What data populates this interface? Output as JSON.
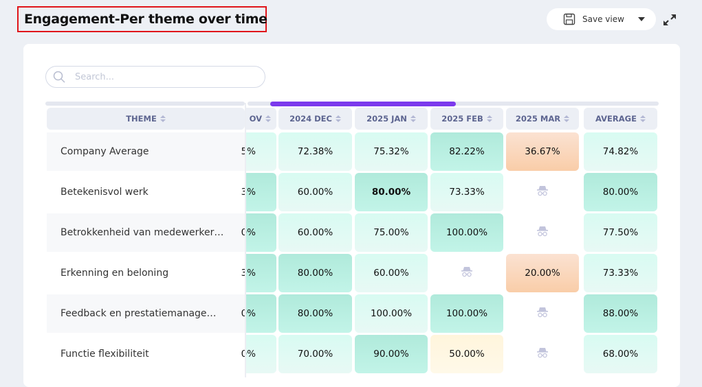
{
  "header": {
    "title": "Engagement-Per theme over time",
    "save_label": "Save view"
  },
  "search": {
    "placeholder": "Search..."
  },
  "table": {
    "columns": [
      "THEME",
      "OV",
      "2024 DEC",
      "2025 JAN",
      "2025 FEB",
      "2025 MAR",
      "AVERAGE"
    ],
    "rows": [
      {
        "theme": "Company Average",
        "cells": [
          {
            "v": "5%",
            "c": "light"
          },
          {
            "v": "72.38%",
            "c": "light"
          },
          {
            "v": "75.32%",
            "c": "light"
          },
          {
            "v": "82.22%",
            "c": "mid"
          },
          {
            "v": "36.67%",
            "c": "peach"
          },
          {
            "v": "74.82%",
            "c": "light"
          }
        ]
      },
      {
        "theme": "Betekenisvol werk",
        "cells": [
          {
            "v": "3%",
            "c": "mid"
          },
          {
            "v": "60.00%",
            "c": "light"
          },
          {
            "v": "80.00%",
            "c": "mid",
            "bold": true
          },
          {
            "v": "73.33%",
            "c": "light"
          },
          {
            "v": null,
            "c": "none",
            "icon": "incognito-icon"
          },
          {
            "v": "80.00%",
            "c": "mid"
          }
        ]
      },
      {
        "theme": "Betrokkenheid van medewerker…",
        "cells": [
          {
            "v": "0%",
            "c": "mid"
          },
          {
            "v": "60.00%",
            "c": "light"
          },
          {
            "v": "75.00%",
            "c": "light"
          },
          {
            "v": "100.00%",
            "c": "mid"
          },
          {
            "v": null,
            "c": "none",
            "icon": "incognito-icon"
          },
          {
            "v": "77.50%",
            "c": "light"
          }
        ]
      },
      {
        "theme": "Erkenning en beloning",
        "cells": [
          {
            "v": "3%",
            "c": "mid"
          },
          {
            "v": "80.00%",
            "c": "mid"
          },
          {
            "v": "60.00%",
            "c": "light"
          },
          {
            "v": null,
            "c": "none",
            "icon": "incognito-icon"
          },
          {
            "v": "20.00%",
            "c": "peach"
          },
          {
            "v": "73.33%",
            "c": "light"
          }
        ]
      },
      {
        "theme": "Feedback en prestatiemanage…",
        "cells": [
          {
            "v": "0%",
            "c": "mid"
          },
          {
            "v": "80.00%",
            "c": "mid"
          },
          {
            "v": "100.00%",
            "c": "light"
          },
          {
            "v": "100.00%",
            "c": "mid"
          },
          {
            "v": null,
            "c": "none",
            "icon": "incognito-icon"
          },
          {
            "v": "88.00%",
            "c": "mid"
          }
        ]
      },
      {
        "theme": "Functie flexibiliteit",
        "cells": [
          {
            "v": "0%",
            "c": "light"
          },
          {
            "v": "70.00%",
            "c": "light"
          },
          {
            "v": "90.00%",
            "c": "mid"
          },
          {
            "v": "50.00%",
            "c": "yellow"
          },
          {
            "v": null,
            "c": "none",
            "icon": "incognito-icon"
          },
          {
            "v": "68.00%",
            "c": "light"
          }
        ]
      }
    ]
  },
  "colors": {
    "accent": "#7c3aed",
    "highlight_border": "#e0141a",
    "mid": "#b0eadb",
    "light": "#d8fbf2",
    "peach": "#f9cda8",
    "yellow": "#fff5dc"
  }
}
